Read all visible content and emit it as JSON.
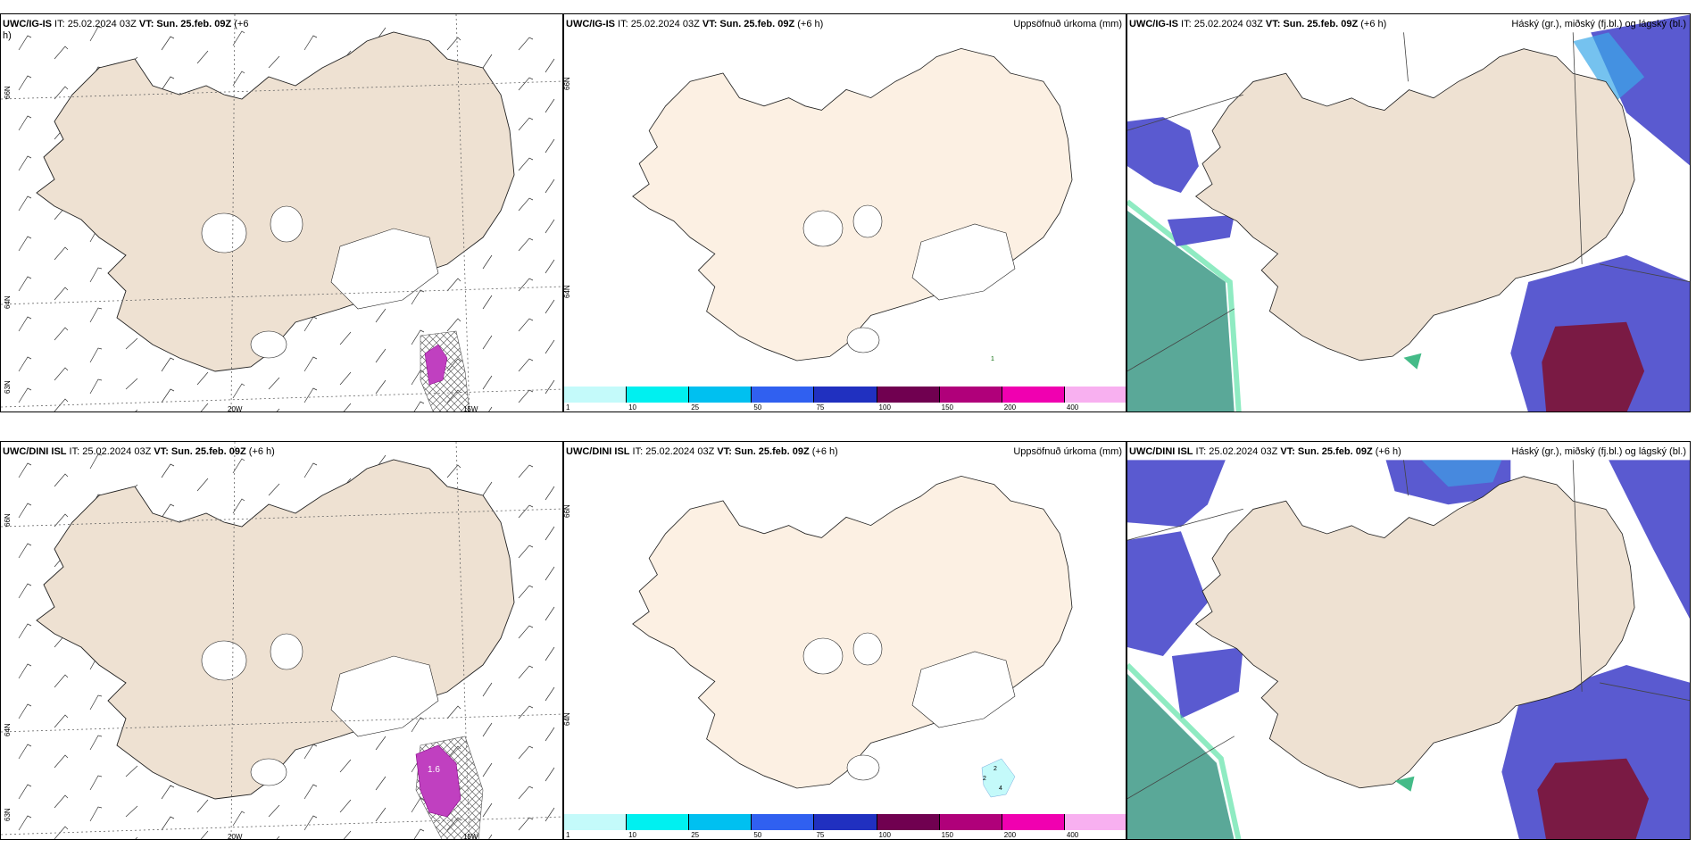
{
  "panels": {
    "top_left": {
      "head_model": "UWC/IG-IS",
      "head_rest": " IT: 25.02.2024 03Z ",
      "head_vt": "VT: Sun. 25.feb. 09Z",
      "head_tail": " (+6",
      "head_line2": "h)",
      "lon_labels": [
        "20W",
        "15W"
      ],
      "lat_labels": [
        "66N",
        "64N",
        "63N"
      ]
    },
    "top_mid": {
      "head_model": "UWC/IG-IS",
      "head_rest": " IT: 25.02.2024 03Z ",
      "head_vt": "VT: Sun. 25.feb. 09Z",
      "head_tail": " (+6 h)",
      "title_right": "Uppsöfnuð úrkoma (mm)",
      "lat_labels": [
        "66N",
        "64N"
      ],
      "point_labels": [
        "1"
      ]
    },
    "top_right": {
      "head_model": "UWC/IG-IS",
      "head_rest": " IT: 25.02.2024 03Z ",
      "head_vt": "VT: Sun. 25.feb. 09Z",
      "head_tail": " (+6 h)",
      "title_right": "Háský (gr.), miðský (fj.bl.) og lágský (bl.)"
    },
    "bottom_left": {
      "head_model": "UWC/DINI ISL",
      "head_rest": " IT: 25.02.2024 03Z ",
      "head_vt": "VT: Sun. 25.feb. 09Z",
      "head_tail": " (+6 h)",
      "lon_labels": [
        "20W",
        "15W"
      ],
      "lat_labels": [
        "66N",
        "64N",
        "63N"
      ],
      "point_labels": [
        "1.6"
      ]
    },
    "bottom_mid": {
      "head_model": "UWC/DINI ISL",
      "head_rest": " IT: 25.02.2024 03Z ",
      "head_vt": "VT: Sun. 25.feb. 09Z",
      "head_tail": " (+6 h)",
      "title_right": "Uppsöfnuð úrkoma (mm)",
      "lat_labels": [
        "66N",
        "64N"
      ],
      "point_labels": [
        "2",
        "2",
        "4"
      ]
    },
    "bottom_right": {
      "head_model": "UWC/DINI ISL",
      "head_rest": " IT: 25.02.2024 03Z ",
      "head_vt": "VT: Sun. 25.feb. 09Z",
      "head_tail": " (+6 h)",
      "title_right": "Háský (gr.), miðský (fj.bl.) og lágský (bl.)"
    }
  },
  "precip_colorbar": {
    "labels": [
      "1",
      "10",
      "25",
      "50",
      "75",
      "100",
      "150",
      "200",
      "400"
    ],
    "colors": [
      "#c4fafa",
      "#00f0f0",
      "#00c0f0",
      "#3060f0",
      "#2030c0",
      "#700050",
      "#b0007a",
      "#f000b0",
      "#f8b0f0"
    ]
  },
  "colors": {
    "land_tan": "#eee1d2",
    "land_cream": "#fcf0e3",
    "cloud_low": "#5a5ad0",
    "cloud_mid": "#3aa8e8",
    "cloud_high": "#5aa898",
    "precip_dark": "#7a1a44"
  }
}
